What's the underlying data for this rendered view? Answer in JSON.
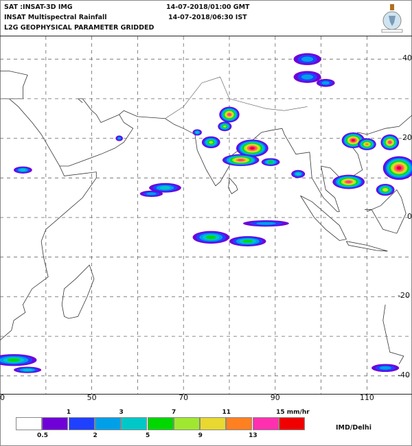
{
  "header": {
    "satellite": "SAT :INSAT-3D IMG",
    "product": "INSAT Multispectral Rainfall",
    "level": "L2G GEOPHYSICAL PARAMETER GRIDDED",
    "time_gmt": "14-07-2018/01:00 GMT",
    "time_ist": "14-07-2018/06:30 IST"
  },
  "logo": {
    "name": "IMD emblem"
  },
  "map": {
    "lon_labels": [
      "0",
      "50",
      "70",
      "90",
      "110"
    ],
    "lat_labels": [
      "40",
      "20",
      "0",
      "-20",
      "-40"
    ],
    "lon_grid": [
      40,
      50,
      60,
      70,
      80,
      90,
      100,
      110
    ],
    "lat_grid": [
      40,
      30,
      20,
      10,
      0,
      -10,
      -20,
      -30,
      -40
    ],
    "rain_cells": [
      {
        "lon": 80,
        "lat": 26,
        "rx": 2.2,
        "ry": 2,
        "level": 9
      },
      {
        "lon": 79,
        "lat": 23,
        "rx": 1.5,
        "ry": 1.2,
        "level": 6
      },
      {
        "lon": 76,
        "lat": 19,
        "rx": 2,
        "ry": 1.5,
        "level": 6
      },
      {
        "lon": 73,
        "lat": 21.5,
        "rx": 1,
        "ry": 0.8,
        "level": 4
      },
      {
        "lon": 85,
        "lat": 17.5,
        "rx": 3.5,
        "ry": 2.2,
        "level": 10
      },
      {
        "lon": 82.5,
        "lat": 14.5,
        "rx": 4,
        "ry": 1.5,
        "level": 9
      },
      {
        "lon": 89,
        "lat": 14,
        "rx": 2,
        "ry": 1,
        "level": 5
      },
      {
        "lon": 95,
        "lat": 11,
        "rx": 1.5,
        "ry": 1,
        "level": 4
      },
      {
        "lon": 106,
        "lat": 9,
        "rx": 3.5,
        "ry": 1.8,
        "level": 9
      },
      {
        "lon": 107,
        "lat": 19.5,
        "rx": 2.5,
        "ry": 2,
        "level": 10
      },
      {
        "lon": 110,
        "lat": 18.5,
        "rx": 2,
        "ry": 1.5,
        "level": 8
      },
      {
        "lon": 115,
        "lat": 19,
        "rx": 2,
        "ry": 2,
        "level": 9
      },
      {
        "lon": 117,
        "lat": 12.5,
        "rx": 3.5,
        "ry": 3,
        "level": 10
      },
      {
        "lon": 114,
        "lat": 7,
        "rx": 2,
        "ry": 1.5,
        "level": 7
      },
      {
        "lon": 97,
        "lat": 40,
        "rx": 3,
        "ry": 1.5,
        "level": 3
      },
      {
        "lon": 97,
        "lat": 35.5,
        "rx": 3,
        "ry": 1.5,
        "level": 3
      },
      {
        "lon": 101,
        "lat": 34,
        "rx": 2,
        "ry": 1,
        "level": 3
      },
      {
        "lon": 66,
        "lat": 7.5,
        "rx": 3.5,
        "ry": 1.2,
        "level": 4
      },
      {
        "lon": 63,
        "lat": 6,
        "rx": 2.5,
        "ry": 0.8,
        "level": 3
      },
      {
        "lon": 35,
        "lat": 12,
        "rx": 2,
        "ry": 0.9,
        "level": 4
      },
      {
        "lon": 76,
        "lat": -5,
        "rx": 4,
        "ry": 1.6,
        "level": 5
      },
      {
        "lon": 84,
        "lat": -6,
        "rx": 4,
        "ry": 1.3,
        "level": 5
      },
      {
        "lon": 88,
        "lat": -1.5,
        "rx": 5,
        "ry": 0.8,
        "level": 3
      },
      {
        "lon": 33,
        "lat": -36,
        "rx": 5,
        "ry": 1.5,
        "level": 5
      },
      {
        "lon": 36,
        "lat": -38.5,
        "rx": 3,
        "ry": 0.8,
        "level": 4
      },
      {
        "lon": 114,
        "lat": -38,
        "rx": 3,
        "ry": 1,
        "level": 3
      },
      {
        "lon": 56,
        "lat": 20,
        "rx": 0.8,
        "ry": 0.7,
        "level": 3
      }
    ]
  },
  "colorbar": {
    "colors": [
      "#ffffff",
      "#7000d8",
      "#2040ff",
      "#00a0e8",
      "#00c8c8",
      "#00d800",
      "#a0e830",
      "#e8d830",
      "#ff8020",
      "#ff30b0",
      "#f00000"
    ],
    "top_labels": [
      "1",
      "3",
      "7",
      "11",
      "15 mm/hr"
    ],
    "bottom_labels": [
      "0.5",
      "2",
      "5",
      "9",
      "13"
    ]
  },
  "credit": "IMD/Delhi"
}
